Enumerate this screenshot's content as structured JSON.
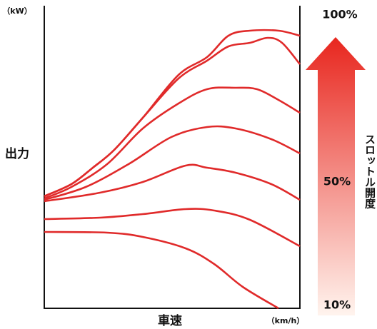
{
  "chart_data": {
    "type": "line",
    "y_label": "出力",
    "y_unit": "（kW）",
    "x_label": "車速",
    "x_unit": "（km/h）",
    "legend_title": "スロットル開度",
    "legend_labels": [
      "100%",
      "50%",
      "10%"
    ],
    "xlim": [
      0,
      358
    ],
    "ylim": [
      0,
      414
    ],
    "series": [
      {
        "color": "#e02a2a",
        "x": [
          0,
          38,
          68,
          98,
          138,
          188,
          228,
          258,
          288,
          328,
          358
        ],
        "values": [
          157,
          174,
          197,
          222,
          267,
          327,
          352,
          382,
          389,
          389,
          382
        ]
      },
      {
        "color": "#e02a2a",
        "x": [
          0,
          38,
          68,
          98,
          138,
          188,
          228,
          258,
          288,
          313,
          333,
          358
        ],
        "values": [
          157,
          174,
          197,
          222,
          267,
          322,
          347,
          367,
          372,
          379,
          372,
          342
        ]
      },
      {
        "color": "#e02a2a",
        "x": [
          0,
          38,
          88,
          138,
          188,
          228,
          268,
          298,
          328,
          358
        ],
        "values": [
          154,
          170,
          202,
          252,
          287,
          307,
          309,
          307,
          292,
          274
        ]
      },
      {
        "color": "#e02a2a",
        "x": [
          0,
          58,
          118,
          178,
          228,
          268,
          318,
          358
        ],
        "values": [
          152,
          170,
          202,
          240,
          254,
          252,
          237,
          217
        ]
      },
      {
        "color": "#e02a2a",
        "x": [
          0,
          78,
          138,
          198,
          228,
          268,
          318,
          358
        ],
        "values": [
          150,
          162,
          177,
          200,
          197,
          190,
          174,
          152
        ]
      },
      {
        "color": "#e02a2a",
        "x": [
          0,
          78,
          138,
          198,
          238,
          288,
          358
        ],
        "values": [
          125,
          127,
          132,
          139,
          137,
          124,
          87
        ]
      },
      {
        "color": "#e02a2a",
        "x": [
          0,
          88,
          138,
          198,
          238,
          278,
          328
        ],
        "values": [
          107,
          106,
          100,
          84,
          62,
          30,
          0
        ]
      }
    ]
  }
}
